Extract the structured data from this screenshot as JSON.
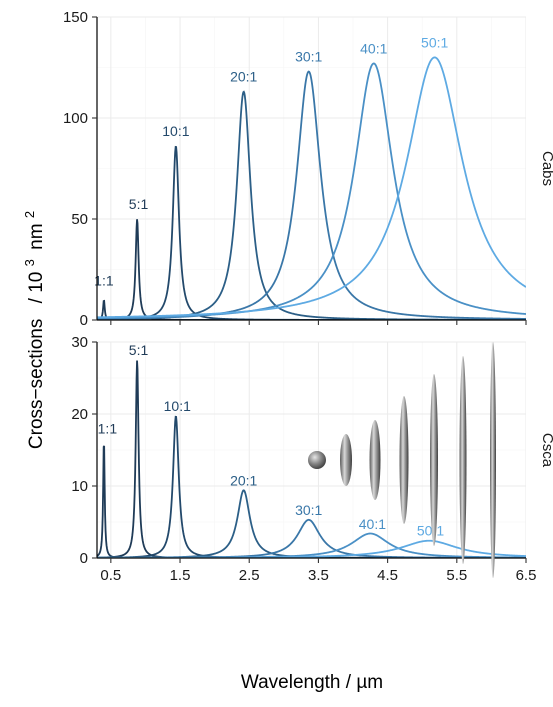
{
  "chart_data": {
    "type": "line",
    "xlabel": "Wavelength",
    "xunit": "µm",
    "ylabel": "Cross−sections",
    "yunit_prefix": "10",
    "yunit_exp": "3",
    "yunit_base": "nm",
    "yunit_base_exp": "2",
    "xlim": [
      0.3,
      6.5
    ],
    "xticks": [
      0.5,
      1.5,
      2.5,
      3.5,
      4.5,
      5.5,
      6.5
    ],
    "xtick_labels": [
      "0.5",
      "1.5",
      "2.5",
      "3.5",
      "4.5",
      "5.5",
      "6.5"
    ],
    "grid": true,
    "colors": [
      "#1f3b57",
      "#1f3b57",
      "#23496b",
      "#2c5f87",
      "#3a77a8",
      "#4a90c6",
      "#5eaae3"
    ],
    "panels": [
      {
        "strip": "Cabs",
        "ylim": [
          0,
          150
        ],
        "yticks": [
          0,
          50,
          100,
          150
        ],
        "ytick_labels": [
          "0",
          "50",
          "100",
          "150"
        ],
        "series": [
          {
            "label": "1:1",
            "peak_x": 0.4,
            "peak_y": 10,
            "width": 0.014,
            "label_x": 0.4,
            "label_y": 17
          },
          {
            "label": "5:1",
            "peak_x": 0.88,
            "peak_y": 50,
            "width": 0.026,
            "label_x": 0.9,
            "label_y": 55
          },
          {
            "label": "10:1",
            "peak_x": 1.44,
            "peak_y": 86,
            "width": 0.055,
            "label_x": 1.44,
            "label_y": 91
          },
          {
            "label": "20:1",
            "peak_x": 2.42,
            "peak_y": 113,
            "width": 0.12,
            "label_x": 2.42,
            "label_y": 118
          },
          {
            "label": "30:1",
            "peak_x": 3.36,
            "peak_y": 123,
            "width": 0.21,
            "label_x": 3.36,
            "label_y": 128
          },
          {
            "label": "40:1",
            "peak_x": 4.3,
            "peak_y": 127,
            "width": 0.34,
            "label_x": 4.3,
            "label_y": 132
          },
          {
            "label": "50:1",
            "peak_x": 5.18,
            "peak_y": 130,
            "width": 0.5,
            "label_x": 5.18,
            "label_y": 135
          }
        ]
      },
      {
        "strip": "Csca",
        "ylim": [
          0,
          30
        ],
        "yticks": [
          0,
          10,
          20,
          30
        ],
        "ytick_labels": [
          "0",
          "10",
          "20",
          "30"
        ],
        "series": [
          {
            "label": "1:1",
            "peak_x": 0.4,
            "peak_y": 16.6,
            "width": 0.013,
            "label_x": 0.45,
            "label_y": 17.3
          },
          {
            "label": "5:1",
            "peak_x": 0.88,
            "peak_y": 27.5,
            "width": 0.025,
            "label_x": 0.9,
            "label_y": 28.2
          },
          {
            "label": "10:1",
            "peak_x": 1.44,
            "peak_y": 19.7,
            "width": 0.05,
            "label_x": 1.46,
            "label_y": 20.4
          },
          {
            "label": "20:1",
            "peak_x": 2.42,
            "peak_y": 9.4,
            "width": 0.11,
            "label_x": 2.42,
            "label_y": 10.1
          },
          {
            "label": "30:1",
            "peak_x": 3.36,
            "peak_y": 5.3,
            "width": 0.2,
            "label_x": 3.36,
            "label_y": 6.0
          },
          {
            "label": "40:1",
            "peak_x": 4.25,
            "peak_y": 3.4,
            "width": 0.33,
            "label_x": 4.28,
            "label_y": 4.0
          },
          {
            "label": "50:1",
            "peak_x": 5.1,
            "peak_y": 2.4,
            "width": 0.5,
            "label_x": 5.12,
            "label_y": 3.1
          }
        ]
      }
    ]
  }
}
